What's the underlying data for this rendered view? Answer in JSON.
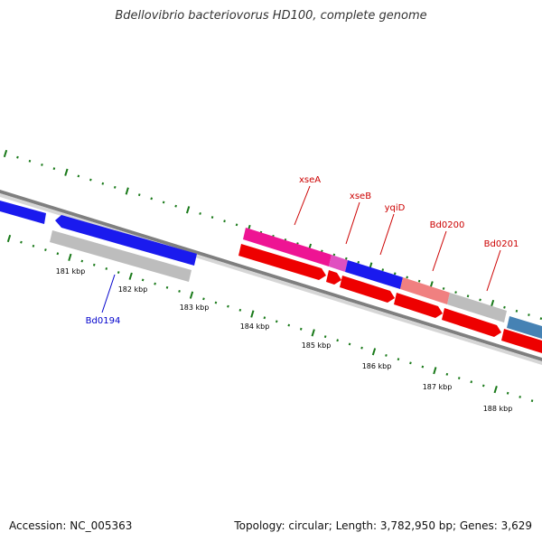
{
  "title": "Bdellovibrio bacteriovorus HD100, complete genome",
  "accession_text": "Accession: NC_005363",
  "topology_text": "Topology: circular; Length: 3,782,950 bp; Genes: 3,629",
  "colors": {
    "backbone": "#7f7f7f",
    "tick": "#1a7a1a",
    "gene_label": "#cc0000",
    "gene_label_blue": "#0000cc",
    "axis_label": "#000000",
    "red": "#ee0000",
    "magenta": "#ee1493",
    "blue": "#1a1aee",
    "gray": "#bdbdbd",
    "salmon": "#f08080",
    "steelblue": "#4682b4"
  },
  "scale_labels": [
    "181 kbp",
    "182 kbp",
    "183 kbp",
    "184 kbp",
    "185 kbp",
    "186 kbp",
    "187 kbp",
    "188 kbp"
  ],
  "gene_labels": [
    {
      "text": "xseA",
      "color": "red"
    },
    {
      "text": "xseB",
      "color": "red"
    },
    {
      "text": "yqiD",
      "color": "red"
    },
    {
      "text": "Bd0200",
      "color": "red"
    },
    {
      "text": "Bd0201",
      "color": "red"
    },
    {
      "text": "Bd0194",
      "color": "blue"
    }
  ]
}
